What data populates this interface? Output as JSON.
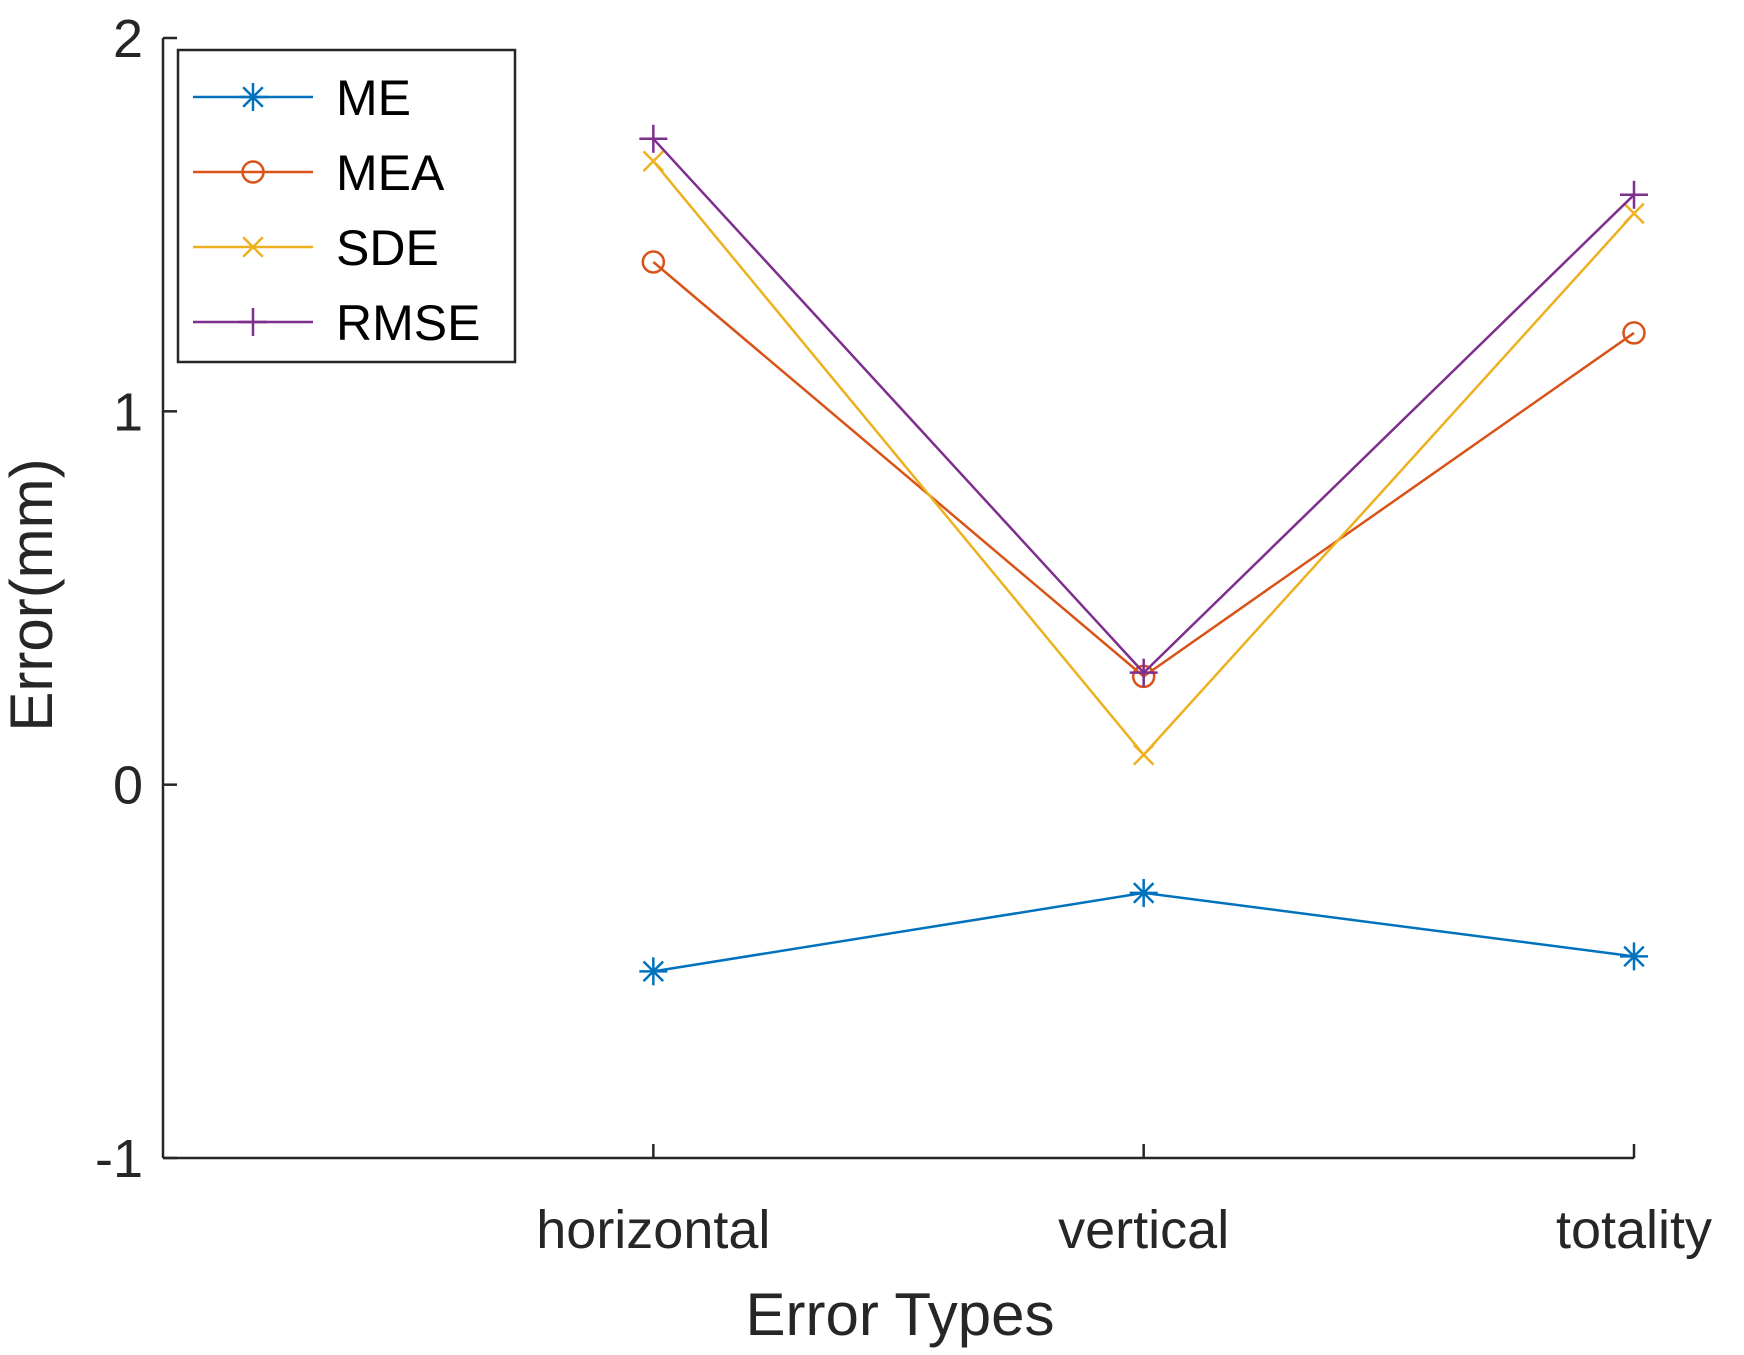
{
  "chart_data": {
    "type": "line",
    "xlabel": "Error Types",
    "ylabel": "Error(mm)",
    "categories": [
      "horizontal",
      "vertical",
      "totality"
    ],
    "xlim": [
      0,
      3
    ],
    "ylim": [
      -1,
      2
    ],
    "yticks": [
      -1,
      0,
      1,
      2
    ],
    "legend_position": "top-left",
    "series": [
      {
        "name": "ME",
        "values": [
          -0.5,
          -0.29,
          -0.46
        ],
        "color": "#0072BD",
        "marker": "asterisk"
      },
      {
        "name": "MEA",
        "values": [
          1.4,
          0.29,
          1.21
        ],
        "color": "#D95319",
        "marker": "circle"
      },
      {
        "name": "SDE",
        "values": [
          1.67,
          0.08,
          1.53
        ],
        "color": "#EDB120",
        "marker": "x"
      },
      {
        "name": "RMSE",
        "values": [
          1.73,
          0.3,
          1.58
        ],
        "color": "#7E2F8E",
        "marker": "plus"
      }
    ]
  }
}
